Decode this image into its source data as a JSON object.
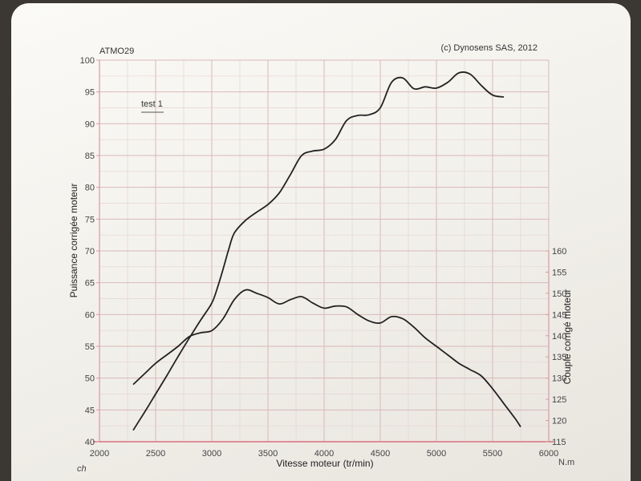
{
  "chart_data": {
    "type": "line",
    "header_left": "ATMO29",
    "header_right": "(c) Dynosens SAS, 2012",
    "legend": "test 1",
    "xlabel": "Vitesse moteur (tr/min)",
    "ylabel_left": "Puissance corrigée moteur",
    "ylabel_right": "Couple corrigé moteur",
    "unit_left": "ch",
    "unit_right": "N.m",
    "xlim": [
      2000,
      6000
    ],
    "xticks": [
      2000,
      2500,
      3000,
      3500,
      4000,
      4500,
      5000,
      5500,
      6000
    ],
    "ylim_left": [
      40,
      100
    ],
    "yticks_left": [
      40,
      45,
      50,
      55,
      60,
      65,
      70,
      75,
      80,
      85,
      90,
      95,
      100
    ],
    "ylim_right": [
      115,
      160
    ],
    "yticks_right": [
      115,
      120,
      125,
      130,
      135,
      140,
      145,
      150,
      155,
      160
    ],
    "grid": true,
    "series": [
      {
        "axis": "left",
        "x": [
          2300,
          2400,
          2500,
          2600,
          2700,
          2800,
          2900,
          3000,
          3050,
          3100,
          3150,
          3200,
          3300,
          3400,
          3500,
          3600,
          3700,
          3800,
          3900,
          4000,
          4100,
          4200,
          4300,
          4400,
          4500,
          4600,
          4700,
          4800,
          4900,
          5000,
          5100,
          5200,
          5300,
          5400,
          5500,
          5600
        ],
        "values": [
          41.8,
          44.6,
          47.5,
          50.4,
          53.4,
          56.3,
          59.1,
          61.8,
          64.2,
          67.1,
          70.2,
          72.8,
          74.8,
          76.1,
          77.3,
          79.1,
          82.0,
          85.0,
          85.7,
          86.0,
          87.5,
          90.5,
          91.3,
          91.4,
          92.5,
          96.5,
          97.2,
          95.5,
          95.8,
          95.6,
          96.5,
          98.0,
          97.8,
          96.0,
          94.5,
          94.2
        ]
      },
      {
        "axis": "right",
        "x": [
          2300,
          2400,
          2500,
          2600,
          2700,
          2800,
          2900,
          3000,
          3100,
          3200,
          3300,
          3400,
          3500,
          3600,
          3700,
          3800,
          3900,
          4000,
          4100,
          4200,
          4300,
          4400,
          4500,
          4600,
          4700,
          4800,
          4900,
          5000,
          5100,
          5200,
          5300,
          5400,
          5500,
          5600,
          5700,
          5750
        ],
        "values": [
          128.5,
          131.0,
          133.5,
          135.5,
          137.5,
          139.8,
          140.7,
          141.2,
          144.0,
          148.5,
          150.8,
          150.0,
          149.0,
          147.5,
          148.5,
          149.2,
          147.7,
          146.5,
          147.0,
          146.8,
          145.0,
          143.5,
          143.0,
          144.5,
          144.0,
          142.0,
          139.5,
          137.5,
          135.5,
          133.5,
          132.0,
          130.5,
          127.5,
          124.0,
          120.5,
          118.5
        ]
      }
    ]
  }
}
